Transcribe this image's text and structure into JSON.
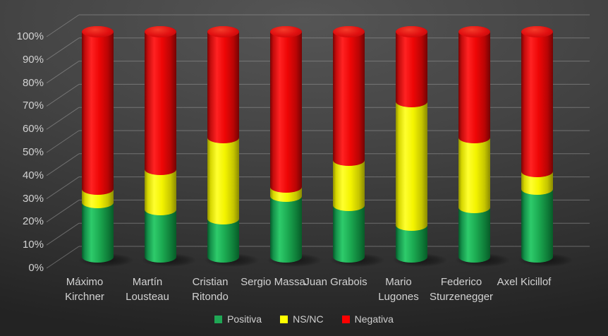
{
  "chart_data": {
    "type": "bar",
    "subtype": "stacked-percent-3d-cylinders",
    "title": "",
    "xlabel": "",
    "ylabel": "",
    "categories": [
      "Máximo Kirchner",
      "Martín Lousteau",
      "Cristian Ritondo",
      "Sergio Massa",
      "Juan Grabois",
      "Mario Lugones",
      "Federico Sturzenegger",
      "Axel Kicillof"
    ],
    "category_label_lines": [
      [
        "Máximo",
        "Kirchner"
      ],
      [
        "Martín",
        "Lousteau"
      ],
      [
        "Cristian",
        "Ritondo"
      ],
      [
        "Sergio Massa"
      ],
      [
        "Juan Grabois"
      ],
      [
        "Mario",
        "Lugones"
      ],
      [
        "Federico",
        "Sturzenegger"
      ],
      [
        "Axel Kicillof"
      ]
    ],
    "series": [
      {
        "name": "Positiva",
        "color": "#1fa755",
        "values": [
          24,
          21,
          17,
          27,
          23,
          14,
          22,
          30
        ]
      },
      {
        "name": "NS/NC",
        "color": "#ffff00",
        "values": [
          6,
          18,
          36,
          4,
          20,
          55,
          31,
          8
        ]
      },
      {
        "name": "Negativa",
        "color": "#fe0000",
        "values": [
          70,
          61,
          47,
          69,
          57,
          31,
          47,
          62
        ]
      }
    ],
    "y_ticks": [
      "0%",
      "10%",
      "20%",
      "30%",
      "40%",
      "50%",
      "60%",
      "70%",
      "80%",
      "90%",
      "100%"
    ],
    "ylim": [
      0,
      100
    ],
    "grid": true,
    "legend_position": "bottom",
    "background_color": "#3d3d3d",
    "text_color": "#d2d2d2",
    "gridline_color": "#9a9a9a"
  }
}
